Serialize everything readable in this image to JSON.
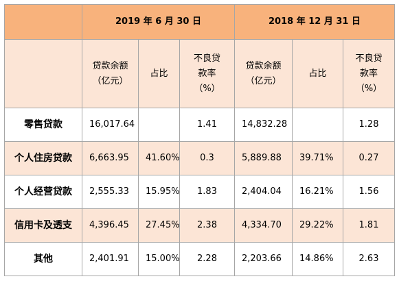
{
  "periods": {
    "p1": "2019 年 6 月 30 日",
    "p2": "2018 年 12 月 31 日"
  },
  "columns": {
    "p1": {
      "balance": [
        "贷款余额",
        "（亿元）"
      ],
      "ratio": [
        "占比"
      ],
      "npl": [
        "不良贷",
        "款率",
        "（%）"
      ]
    },
    "p2": {
      "balance": [
        "贷款余额",
        "（亿元）"
      ],
      "ratio": [
        "占比"
      ],
      "npl": [
        "不良贷",
        "款率",
        "（%）"
      ]
    }
  },
  "rows": [
    {
      "category": "零售贷款",
      "p1_balance": "16,017.64",
      "p1_ratio": "",
      "p1_npl": "1.41",
      "p2_balance": "14,832.28",
      "p2_ratio": "",
      "p2_npl": "1.28"
    },
    {
      "category": "个人住房贷款",
      "p1_balance": "6,663.95",
      "p1_ratio": "41.60%",
      "p1_npl": "0.3",
      "p2_balance": "5,889.88",
      "p2_ratio": "39.71%",
      "p2_npl": "0.27"
    },
    {
      "category": "个人经营贷款",
      "p1_balance": "2,555.33",
      "p1_ratio": "15.95%",
      "p1_npl": "1.83",
      "p2_balance": "2,404.04",
      "p2_ratio": "16.21%",
      "p2_npl": "1.56"
    },
    {
      "category": "信用卡及透支",
      "p1_balance": "4,396.45",
      "p1_ratio": "27.45%",
      "p1_npl": "2.38",
      "p2_balance": "4,334.70",
      "p2_ratio": "29.22%",
      "p2_npl": "1.81"
    },
    {
      "category": "其他",
      "p1_balance": "2,401.91",
      "p1_ratio": "15.00%",
      "p1_npl": "2.28",
      "p2_balance": "2,203.66",
      "p2_ratio": "14.86%",
      "p2_npl": "2.63"
    }
  ],
  "colors": {
    "header_orange": "#f8b27c",
    "row_peach": "#fce5d6",
    "border": "#a6a6a6"
  }
}
